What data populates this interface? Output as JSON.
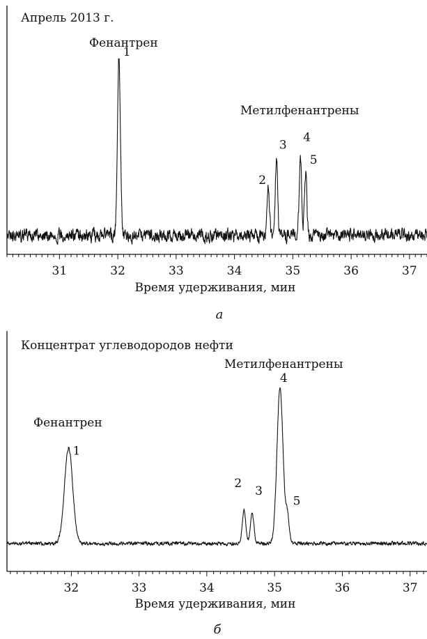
{
  "figure": {
    "panel_a_caption": "а",
    "panel_b_caption": "б"
  },
  "chart_data": [
    {
      "type": "line",
      "title": "Апрель 2013 г.",
      "xlabel": "Время удерживания, мин",
      "ylabel": "",
      "xlim": [
        30.1,
        37.3
      ],
      "xticks": [
        31,
        32,
        33,
        34,
        35,
        36,
        37
      ],
      "minor_tick_step": 0.1,
      "grid": false,
      "baseline_noise": 0.06,
      "peaks": [
        {
          "label": "1",
          "x": 32.02,
          "height": 1.0,
          "width": 0.025
        },
        {
          "label": "2",
          "x": 34.58,
          "height": 0.28,
          "width": 0.02
        },
        {
          "label": "3",
          "x": 34.72,
          "height": 0.42,
          "width": 0.02
        },
        {
          "label": "4",
          "x": 35.13,
          "height": 0.44,
          "width": 0.02
        },
        {
          "label": "5",
          "x": 35.22,
          "height": 0.36,
          "width": 0.02
        }
      ],
      "annotations": [
        {
          "text": "Фенантрен"
        },
        {
          "text": "Метилфенантрены"
        }
      ]
    },
    {
      "type": "line",
      "title": "Концентрат углеводородов нефти",
      "xlabel": "Время удерживания, мин",
      "ylabel": "",
      "xlim": [
        31.05,
        37.25
      ],
      "xticks": [
        32,
        33,
        34,
        35,
        36,
        37
      ],
      "minor_tick_step": 0.1,
      "grid": false,
      "baseline_noise": 0.012,
      "peaks": [
        {
          "label": "1",
          "x": 31.96,
          "height": 0.62,
          "width": 0.06
        },
        {
          "label": "2",
          "x": 34.55,
          "height": 0.22,
          "width": 0.025
        },
        {
          "label": "3",
          "x": 34.67,
          "height": 0.19,
          "width": 0.025
        },
        {
          "label": "4",
          "x": 35.08,
          "height": 1.0,
          "width": 0.045
        },
        {
          "label": "5",
          "x": 35.19,
          "height": 0.17,
          "width": 0.025
        }
      ],
      "annotations": [
        {
          "text": "Фенантрен"
        },
        {
          "text": "Метилфенантрены"
        }
      ]
    }
  ]
}
